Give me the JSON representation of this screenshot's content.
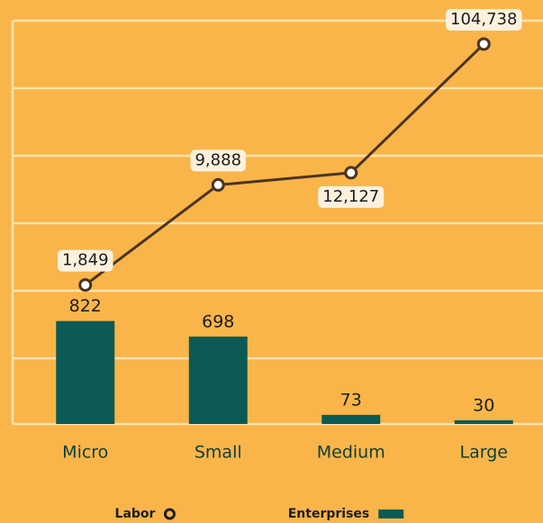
{
  "chart_data": {
    "type": "bar",
    "categories": [
      "Micro",
      "Small",
      "Medium",
      "Large"
    ],
    "series": [
      {
        "name": "Enterprises",
        "type": "bar",
        "color": "#0b5a55",
        "values": [
          822,
          698,
          73,
          30
        ]
      },
      {
        "name": "Labor",
        "type": "line",
        "axis": "y2",
        "color": "#4a3420",
        "values": [
          1849,
          9888,
          12127,
          104738
        ],
        "value_labels": [
          "1,849",
          "9,888",
          "12,127",
          "104,738"
        ]
      }
    ],
    "ylim": [
      0,
      3220
    ],
    "y2lim": [
      180,
      155000
    ],
    "y2scale": "log",
    "grid": true
  }
}
